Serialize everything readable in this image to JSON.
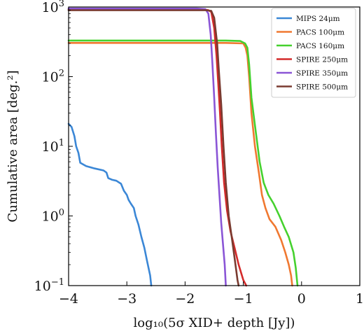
{
  "chart_data": {
    "type": "line",
    "xlabel": "log₁₀(5σ XID+ depth [Jy])",
    "ylabel": "Cumulative area [deg.²]",
    "xlim": [
      -4,
      1
    ],
    "ylim": [
      0.1,
      1000
    ],
    "yscale": "log",
    "xticks": [
      {
        "value": -4,
        "label": "−4"
      },
      {
        "value": -3,
        "label": "−3"
      },
      {
        "value": -2,
        "label": "−2"
      },
      {
        "value": -1,
        "label": "−1"
      },
      {
        "value": 0,
        "label": "0"
      },
      {
        "value": 1,
        "label": "1"
      }
    ],
    "yticks": [
      {
        "value": 0.1,
        "base": "10",
        "exp": "−1"
      },
      {
        "value": 1,
        "base": "10",
        "exp": "0"
      },
      {
        "value": 10,
        "base": "10",
        "exp": "1"
      },
      {
        "value": 100,
        "base": "10",
        "exp": "2"
      },
      {
        "value": 1000,
        "base": "10",
        "exp": "3"
      }
    ],
    "grid": false,
    "legend_position": "top-right",
    "series": [
      {
        "name": "MIPS 24μm",
        "color": "#3b87d6",
        "points": [
          [
            -4.0,
            21
          ],
          [
            -3.95,
            19
          ],
          [
            -3.9,
            14
          ],
          [
            -3.87,
            10
          ],
          [
            -3.83,
            8
          ],
          [
            -3.8,
            5.8
          ],
          [
            -3.7,
            5.2
          ],
          [
            -3.55,
            4.8
          ],
          [
            -3.4,
            4.5
          ],
          [
            -3.35,
            4.2
          ],
          [
            -3.32,
            3.5
          ],
          [
            -3.25,
            3.3
          ],
          [
            -3.18,
            3.2
          ],
          [
            -3.1,
            2.9
          ],
          [
            -3.05,
            2.3
          ],
          [
            -3.0,
            2.0
          ],
          [
            -2.97,
            1.7
          ],
          [
            -2.93,
            1.5
          ],
          [
            -2.88,
            1.3
          ],
          [
            -2.85,
            1.0
          ],
          [
            -2.8,
            0.75
          ],
          [
            -2.75,
            0.5
          ],
          [
            -2.7,
            0.35
          ],
          [
            -2.65,
            0.22
          ],
          [
            -2.6,
            0.14
          ],
          [
            -2.58,
            0.1
          ]
        ]
      },
      {
        "name": "PACS 100μm",
        "color": "#f07830",
        "points": [
          [
            -4.0,
            305
          ],
          [
            -1.3,
            305
          ],
          [
            -1.0,
            300
          ],
          [
            -0.96,
            260
          ],
          [
            -0.93,
            200
          ],
          [
            -0.9,
            100
          ],
          [
            -0.86,
            30
          ],
          [
            -0.8,
            10
          ],
          [
            -0.73,
            4
          ],
          [
            -0.68,
            2
          ],
          [
            -0.62,
            1.3
          ],
          [
            -0.55,
            0.9
          ],
          [
            -0.45,
            0.7
          ],
          [
            -0.35,
            0.45
          ],
          [
            -0.28,
            0.3
          ],
          [
            -0.22,
            0.2
          ],
          [
            -0.18,
            0.14
          ],
          [
            -0.16,
            0.1
          ]
        ]
      },
      {
        "name": "PACS 160μm",
        "color": "#45d12e",
        "points": [
          [
            -4.0,
            330
          ],
          [
            -1.3,
            330
          ],
          [
            -1.05,
            325
          ],
          [
            -0.97,
            300
          ],
          [
            -0.93,
            260
          ],
          [
            -0.9,
            150
          ],
          [
            -0.86,
            50
          ],
          [
            -0.8,
            20
          ],
          [
            -0.72,
            6
          ],
          [
            -0.65,
            3
          ],
          [
            -0.57,
            2
          ],
          [
            -0.48,
            1.5
          ],
          [
            -0.38,
            1.0
          ],
          [
            -0.3,
            0.7
          ],
          [
            -0.22,
            0.5
          ],
          [
            -0.14,
            0.3
          ],
          [
            -0.1,
            0.18
          ],
          [
            -0.07,
            0.1
          ]
        ]
      },
      {
        "name": "SPIRE 250μm",
        "color": "#d42a2a",
        "points": [
          [
            -4.0,
            920
          ],
          [
            -1.7,
            920
          ],
          [
            -1.6,
            900
          ],
          [
            -1.55,
            850
          ],
          [
            -1.5,
            500
          ],
          [
            -1.46,
            200
          ],
          [
            -1.43,
            80
          ],
          [
            -1.4,
            30
          ],
          [
            -1.37,
            10
          ],
          [
            -1.33,
            3
          ],
          [
            -1.28,
            1.2
          ],
          [
            -1.22,
            0.6
          ],
          [
            -1.15,
            0.35
          ],
          [
            -1.08,
            0.2
          ],
          [
            -1.0,
            0.12
          ],
          [
            -0.95,
            0.1
          ]
        ]
      },
      {
        "name": "SPIRE 350μm",
        "color": "#8a55d6",
        "points": [
          [
            -4.0,
            950
          ],
          [
            -1.8,
            950
          ],
          [
            -1.65,
            930
          ],
          [
            -1.6,
            800
          ],
          [
            -1.56,
            400
          ],
          [
            -1.53,
            150
          ],
          [
            -1.5,
            50
          ],
          [
            -1.47,
            15
          ],
          [
            -1.44,
            5
          ],
          [
            -1.41,
            2
          ],
          [
            -1.38,
            0.8
          ],
          [
            -1.35,
            0.4
          ],
          [
            -1.32,
            0.2
          ],
          [
            -1.3,
            0.1
          ]
        ]
      },
      {
        "name": "SPIRE 500μm",
        "color": "#7a3b30",
        "points": [
          [
            -4.0,
            900
          ],
          [
            -1.65,
            900
          ],
          [
            -1.55,
            880
          ],
          [
            -1.5,
            700
          ],
          [
            -1.45,
            300
          ],
          [
            -1.42,
            120
          ],
          [
            -1.38,
            40
          ],
          [
            -1.34,
            10
          ],
          [
            -1.3,
            3
          ],
          [
            -1.25,
            1
          ],
          [
            -1.2,
            0.5
          ],
          [
            -1.15,
            0.25
          ],
          [
            -1.1,
            0.12
          ],
          [
            -1.08,
            0.1
          ]
        ]
      }
    ]
  }
}
